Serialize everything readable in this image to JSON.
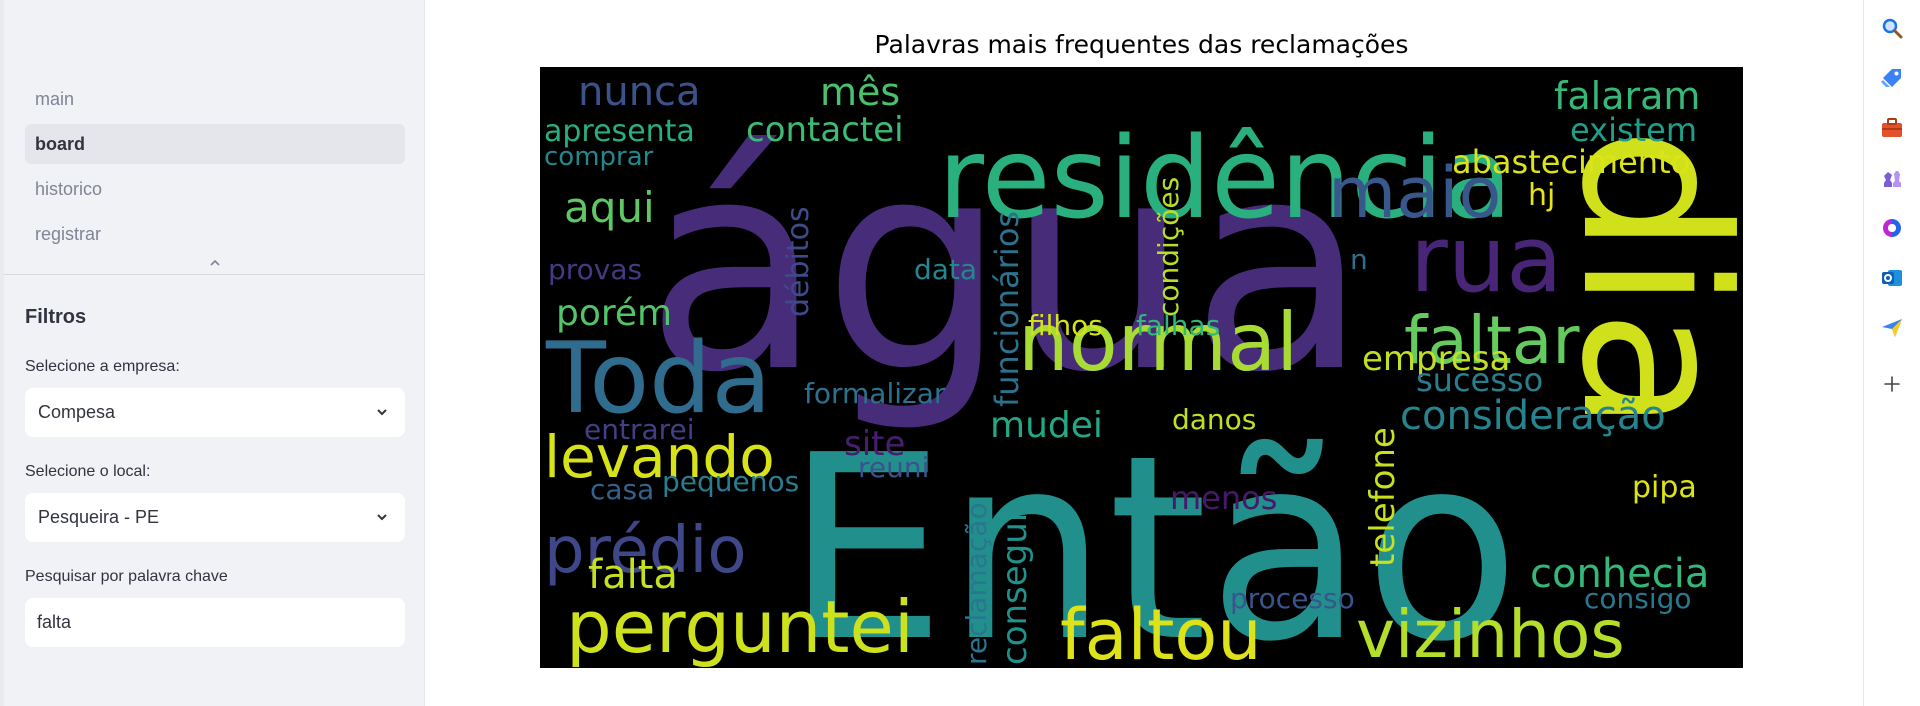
{
  "sidebar": {
    "nav": [
      "main",
      "board",
      "historico",
      "registrar"
    ],
    "active_index": 1,
    "filters_title": "Filtros",
    "company_label": "Selecione a empresa:",
    "company_value": "Compesa",
    "location_label": "Selecione o local:",
    "location_value": "Pesqueira - PE",
    "keyword_label": "Pesquisar por palavra chave",
    "keyword_value": "falta"
  },
  "main": {
    "title": "Palavras mais frequentes das reclamações",
    "wordcloud": [
      {
        "text": "água",
        "color": "#472c7a"
      },
      {
        "text": "Então",
        "color": "#21908d"
      },
      {
        "text": "dia",
        "color": "#d0e11c"
      },
      {
        "text": "residência",
        "color": "#2ab07f"
      },
      {
        "text": "normal",
        "color": "#a8db34"
      },
      {
        "text": "Toda",
        "color": "#2f6c8e"
      },
      {
        "text": "maio",
        "color": "#38588c"
      },
      {
        "text": "rua",
        "color": "#482576"
      },
      {
        "text": "faltar",
        "color": "#65cb5e"
      },
      {
        "text": "perguntei",
        "color": "#cde11d"
      },
      {
        "text": "faltou",
        "color": "#dde318"
      },
      {
        "text": "vizinhos",
        "color": "#b5de2b"
      },
      {
        "text": "levando",
        "color": "#d8e219"
      },
      {
        "text": "prédio",
        "color": "#3f4788"
      },
      {
        "text": "conhecia",
        "color": "#35b779"
      },
      {
        "text": "consideração",
        "color": "#25848e"
      },
      {
        "text": "falaram",
        "color": "#37b878"
      },
      {
        "text": "existem",
        "color": "#1f9e89"
      },
      {
        "text": "abastecimento",
        "color": "#dce319"
      },
      {
        "text": "nunca",
        "color": "#3b528b"
      },
      {
        "text": "mês",
        "color": "#4ac16d"
      },
      {
        "text": "contactei",
        "color": "#3dbc74"
      },
      {
        "text": "apresenta",
        "color": "#29af7f"
      },
      {
        "text": "comprar",
        "color": "#23888e"
      },
      {
        "text": "aqui",
        "color": "#5ec962"
      },
      {
        "text": "hj",
        "color": "#e5e419"
      },
      {
        "text": "provas",
        "color": "#443983"
      },
      {
        "text": "porém",
        "color": "#52c569"
      },
      {
        "text": "débitos",
        "color": "#3e4a89"
      },
      {
        "text": "data",
        "color": "#24878e"
      },
      {
        "text": "funcionários",
        "color": "#2c728e"
      },
      {
        "text": "condições",
        "color": "#b8de29"
      },
      {
        "text": "n",
        "color": "#2e6f8e"
      },
      {
        "text": "filhos",
        "color": "#d2e21b"
      },
      {
        "text": "falhas",
        "color": "#32b67a"
      },
      {
        "text": "empresa",
        "color": "#c0df25"
      },
      {
        "text": "sucesso",
        "color": "#277f8e"
      },
      {
        "text": "formalizar",
        "color": "#2c728e"
      },
      {
        "text": "mudei",
        "color": "#22a884"
      },
      {
        "text": "danos",
        "color": "#c2df23"
      },
      {
        "text": "telefone",
        "color": "#c8e020"
      },
      {
        "text": "entrarei",
        "color": "#433e85"
      },
      {
        "text": "site",
        "color": "#481f70"
      },
      {
        "text": "reuni",
        "color": "#3a538b"
      },
      {
        "text": "casa",
        "color": "#33638d"
      },
      {
        "text": "pequenos",
        "color": "#287d8e"
      },
      {
        "text": "menos",
        "color": "#48186a"
      },
      {
        "text": "pipa",
        "color": "#dde318"
      },
      {
        "text": "reclamação",
        "color": "#2b758e"
      },
      {
        "text": "consegui",
        "color": "#20928c"
      },
      {
        "text": "falta",
        "color": "#c5e021"
      },
      {
        "text": "processo",
        "color": "#3a548c"
      },
      {
        "text": "consigo",
        "color": "#2a788e"
      }
    ]
  },
  "rightbar": {
    "icons": [
      "search-icon",
      "tag-icon",
      "briefcase-icon",
      "chess-icon",
      "copilot-icon",
      "outlook-icon",
      "send-icon",
      "plus-icon"
    ]
  }
}
